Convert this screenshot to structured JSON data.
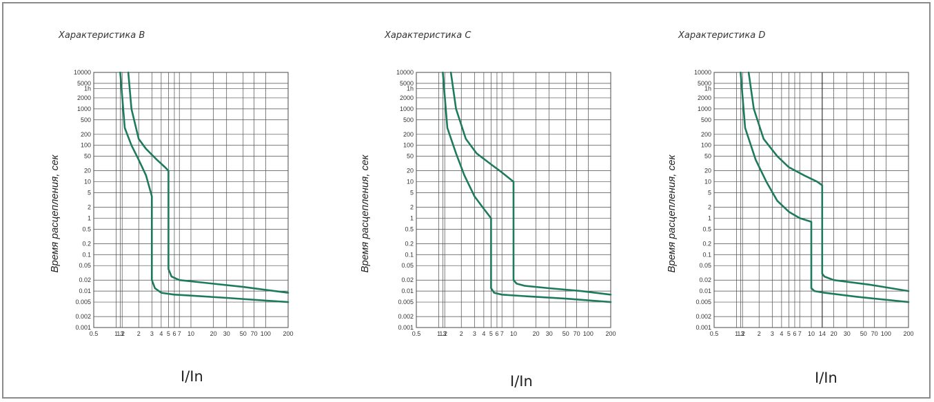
{
  "colors": {
    "curve": "#1e7a5e",
    "grid": "#4a4a4a",
    "frame": "#8a8a8a",
    "text": "#222222"
  },
  "chart_data": [
    {
      "type": "line",
      "title": "Характеристика B",
      "xlabel": "I/In",
      "ylabel": "Время расцепления, сек",
      "xscale": "log",
      "yscale": "log",
      "xlim": [
        0.5,
        200
      ],
      "ylim": [
        0.001,
        10000
      ],
      "xticks": [
        "0.5",
        "1",
        "1.13",
        "1.2",
        "2",
        "3",
        "4",
        "5",
        "6",
        "7",
        "10",
        "20",
        "30",
        "50",
        "70",
        "100",
        "200"
      ],
      "yticks": [
        "10000",
        "5000",
        "1h",
        "2000",
        "1000",
        "500",
        "200",
        "100",
        "50",
        "20",
        "10",
        "5",
        "2",
        "1",
        "0.5",
        "0.2",
        "0.1",
        "0.05",
        "0.02",
        "0.01",
        "0.005",
        "0.002",
        "0.001"
      ],
      "series": [
        {
          "x": [
            1.13,
            1.3,
            1.6,
            2,
            2.5,
            3,
            3,
            3,
            3.3,
            4,
            6,
            10,
            30,
            100,
            200
          ],
          "y": [
            10000,
            300,
            100,
            40,
            15,
            4,
            1,
            0.02,
            0.012,
            0.009,
            0.008,
            0.0075,
            0.0065,
            0.0055,
            0.005
          ]
        },
        {
          "x": [
            1.45,
            1.6,
            2,
            2.5,
            3.5,
            4.5,
            5,
            5,
            5,
            5.5,
            7,
            15,
            50,
            200
          ],
          "y": [
            10000,
            1000,
            150,
            80,
            40,
            25,
            20,
            1,
            0.04,
            0.025,
            0.02,
            0.017,
            0.013,
            0.009
          ]
        }
      ]
    },
    {
      "type": "line",
      "title": "Характеристика C",
      "xlabel": "I/In",
      "ylabel": "Время расцепления, сек",
      "xscale": "log",
      "yscale": "log",
      "xlim": [
        0.5,
        200
      ],
      "ylim": [
        0.001,
        10000
      ],
      "xticks": [
        "0.5",
        "1",
        "1.13",
        "1.2",
        "2",
        "3",
        "4",
        "5",
        "6",
        "7",
        "10",
        "20",
        "30",
        "50",
        "70",
        "100",
        "200"
      ],
      "yticks": [
        "10000",
        "5000",
        "1h",
        "2000",
        "1000",
        "500",
        "200",
        "100",
        "50",
        "20",
        "10",
        "5",
        "2",
        "1",
        "0.5",
        "0.2",
        "0.1",
        "0.05",
        "0.02",
        "0.01",
        "0.005",
        "0.002",
        "0.001"
      ],
      "series": [
        {
          "x": [
            1.13,
            1.3,
            1.7,
            2.2,
            3,
            4,
            5,
            5,
            5,
            5.5,
            7,
            15,
            50,
            200
          ],
          "y": [
            10000,
            300,
            60,
            15,
            4,
            1.8,
            1,
            0.02,
            0.012,
            0.009,
            0.008,
            0.0072,
            0.0062,
            0.005
          ]
        },
        {
          "x": [
            1.45,
            1.7,
            2.3,
            3.2,
            5,
            7,
            10,
            10,
            10,
            11,
            14,
            30,
            80,
            200
          ],
          "y": [
            10000,
            1000,
            150,
            60,
            30,
            18,
            10,
            1,
            0.02,
            0.016,
            0.014,
            0.012,
            0.01,
            0.008
          ]
        }
      ]
    },
    {
      "type": "line",
      "title": "Характеристика D",
      "xlabel": "I/In",
      "ylabel": "Время расцепления, сек",
      "xscale": "log",
      "yscale": "log",
      "xlim": [
        0.5,
        200
      ],
      "ylim": [
        0.001,
        10000
      ],
      "xticks": [
        "0.5",
        "1",
        "1.13",
        "1.2",
        "2",
        "3",
        "4",
        "5",
        "6",
        "7",
        "10",
        "14",
        "20",
        "30",
        "50",
        "70",
        "100",
        "200"
      ],
      "yticks": [
        "10000",
        "5000",
        "1h",
        "2000",
        "1000",
        "500",
        "200",
        "100",
        "50",
        "20",
        "10",
        "5",
        "2",
        "1",
        "0.5",
        "0.2",
        "0.1",
        "0.05",
        "0.02",
        "0.01",
        "0.005",
        "0.002",
        "0.001"
      ],
      "series": [
        {
          "x": [
            1.13,
            1.3,
            1.8,
            2.5,
            3.5,
            5,
            7,
            10,
            10,
            10,
            11,
            15,
            40,
            200
          ],
          "y": [
            10000,
            300,
            40,
            10,
            3,
            1.5,
            1,
            0.8,
            0.02,
            0.012,
            0.01,
            0.009,
            0.007,
            0.005
          ]
        },
        {
          "x": [
            1.45,
            1.7,
            2.3,
            3.5,
            5,
            8,
            12,
            14,
            14,
            14,
            15,
            20,
            60,
            200
          ],
          "y": [
            10000,
            1000,
            150,
            50,
            25,
            15,
            10,
            8,
            0.5,
            0.03,
            0.025,
            0.02,
            0.015,
            0.01
          ]
        }
      ]
    }
  ]
}
